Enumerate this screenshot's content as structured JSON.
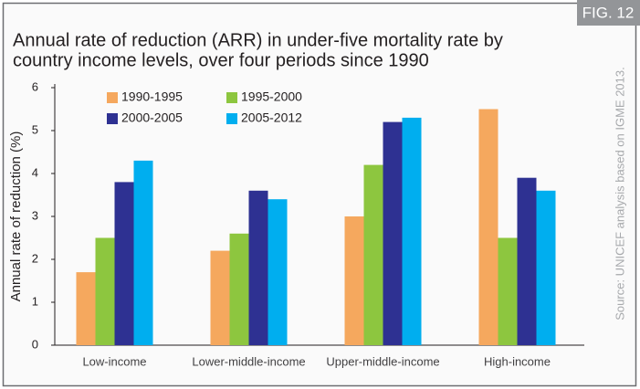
{
  "chart_data": {
    "type": "bar",
    "figure_label": "FIG. 12",
    "title": [
      "Annual rate of reduction (ARR) in under-five mortality rate by",
      "country income levels, over four periods since 1990"
    ],
    "ylabel": "Annual rate of reduction (%)",
    "source": "Source: UNICEF analysis based on IGME 2013.",
    "categories": [
      "Low-income",
      "Lower-middle-income",
      "Upper-middle-income",
      "High-income"
    ],
    "series": [
      {
        "name": "1990-1995",
        "color": "#f5a85e",
        "values": [
          1.7,
          2.2,
          3.0,
          5.5
        ]
      },
      {
        "name": "1995-2000",
        "color": "#8dc63f",
        "values": [
          2.5,
          2.6,
          4.2,
          2.5
        ]
      },
      {
        "name": "2000-2005",
        "color": "#2e3192",
        "values": [
          3.8,
          3.6,
          5.2,
          3.9
        ]
      },
      {
        "name": "2005-2012",
        "color": "#00aeef",
        "values": [
          4.3,
          3.4,
          5.3,
          3.6
        ]
      }
    ],
    "ylim": [
      0,
      6
    ],
    "yticks": [
      0,
      1,
      2,
      3,
      4,
      5,
      6
    ],
    "grid": false,
    "legend": "top-left"
  }
}
